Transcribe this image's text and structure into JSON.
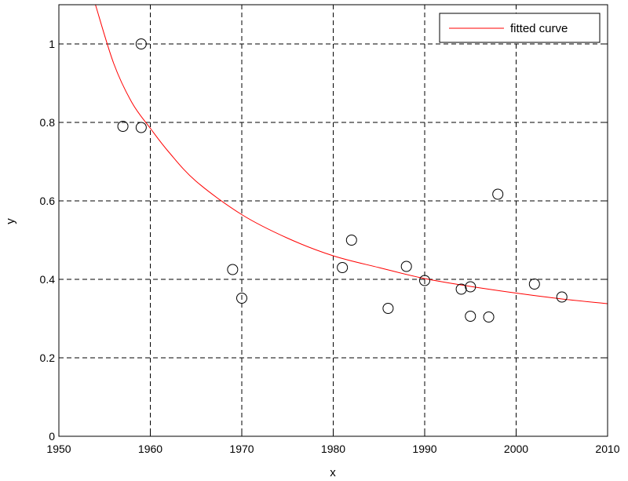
{
  "chart_data": {
    "type": "scatter",
    "xlabel": "x",
    "ylabel": "y",
    "xlim": [
      1950,
      2010
    ],
    "ylim": [
      0,
      1.1
    ],
    "x_ticks": [
      "1950",
      "1960",
      "1970",
      "1980",
      "1990",
      "2000",
      "2010"
    ],
    "y_ticks": [
      "0",
      "0.2",
      "0.4",
      "0.6",
      "0.8",
      "1"
    ],
    "grid": true,
    "grid_style": "dashed",
    "legend": {
      "position": "top-right",
      "entries": [
        "fitted curve"
      ]
    },
    "series": [
      {
        "type": "scatter",
        "marker": "open-circle",
        "color": "#000000",
        "points": [
          {
            "x": 1957,
            "y": 0.79
          },
          {
            "x": 1959,
            "y": 1.0
          },
          {
            "x": 1959,
            "y": 0.787
          },
          {
            "x": 1969,
            "y": 0.425
          },
          {
            "x": 1970,
            "y": 0.352
          },
          {
            "x": 1981,
            "y": 0.43
          },
          {
            "x": 1982,
            "y": 0.5
          },
          {
            "x": 1986,
            "y": 0.326
          },
          {
            "x": 1988,
            "y": 0.433
          },
          {
            "x": 1990,
            "y": 0.397
          },
          {
            "x": 1994,
            "y": 0.375
          },
          {
            "x": 1995,
            "y": 0.381
          },
          {
            "x": 1995,
            "y": 0.306
          },
          {
            "x": 1997,
            "y": 0.304
          },
          {
            "x": 1998,
            "y": 0.617
          },
          {
            "x": 2002,
            "y": 0.388
          },
          {
            "x": 2005,
            "y": 0.355
          }
        ]
      },
      {
        "name": "fitted curve",
        "type": "line",
        "color": "#ff0000",
        "points": [
          {
            "x": 1954,
            "y": 1.1
          },
          {
            "x": 1956,
            "y": 0.95
          },
          {
            "x": 1958,
            "y": 0.85
          },
          {
            "x": 1960,
            "y": 0.785
          },
          {
            "x": 1962,
            "y": 0.725
          },
          {
            "x": 1965,
            "y": 0.65
          },
          {
            "x": 1970,
            "y": 0.565
          },
          {
            "x": 1975,
            "y": 0.505
          },
          {
            "x": 1980,
            "y": 0.46
          },
          {
            "x": 1985,
            "y": 0.43
          },
          {
            "x": 1990,
            "y": 0.402
          },
          {
            "x": 1995,
            "y": 0.382
          },
          {
            "x": 2000,
            "y": 0.365
          },
          {
            "x": 2005,
            "y": 0.35
          },
          {
            "x": 2010,
            "y": 0.338
          }
        ]
      }
    ]
  }
}
